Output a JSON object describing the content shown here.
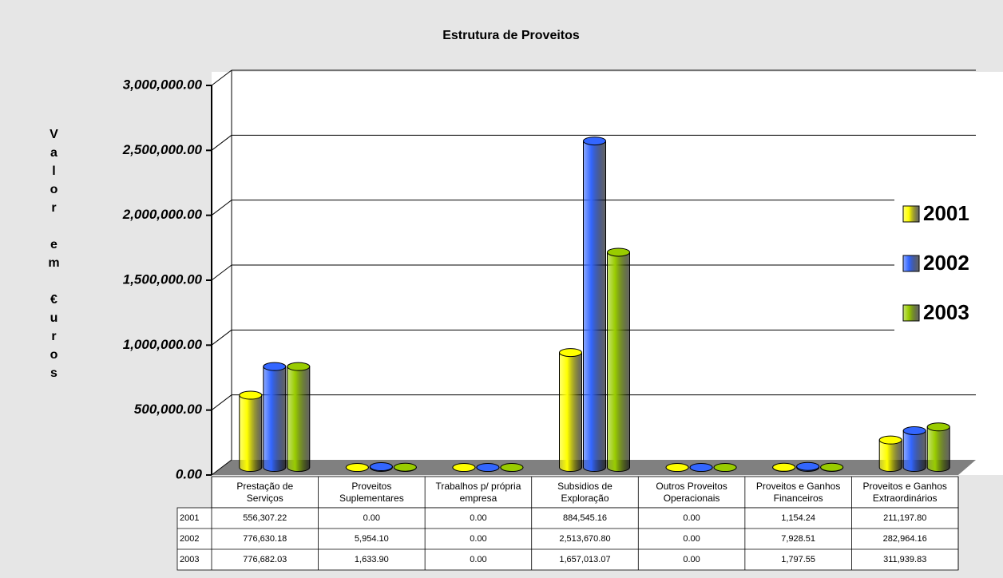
{
  "chart_data": {
    "type": "bar",
    "title": "Estrutura de Proveitos",
    "y_label": "Valor em €uros",
    "categories": [
      "Prestação de Serviços",
      "Proveitos Suplementares",
      "Trabalhos p/ própria empresa",
      "Subsidios de Exploração",
      "Outros Proveitos Operacionais",
      "Proveitos e Ganhos Financeiros",
      "Proveitos e Ganhos Extraordinários"
    ],
    "series": [
      {
        "name": "2001",
        "color": "#ffff00",
        "values": [
          556307.22,
          0,
          0,
          884545.16,
          0,
          1154.24,
          211197.8
        ],
        "value_labels": [
          "556,307.22",
          "0.00",
          "0.00",
          "884,545.16",
          "0.00",
          "1,154.24",
          "211,197.80"
        ]
      },
      {
        "name": "2002",
        "color": "#3366ff",
        "values": [
          776630.18,
          5954.1,
          0,
          2513670.8,
          0,
          7928.51,
          282964.16
        ],
        "value_labels": [
          "776,630.18",
          "5,954.10",
          "0.00",
          "2,513,670.80",
          "0.00",
          "7,928.51",
          "282,964.16"
        ]
      },
      {
        "name": "2003",
        "color": "#99cc00",
        "values": [
          776682.03,
          1633.9,
          0,
          1657013.07,
          0,
          1797.55,
          311939.83
        ],
        "value_labels": [
          "776,682.03",
          "1,633.90",
          "0.00",
          "1,657,013.07",
          "0.00",
          "1,797.55",
          "311,939.83"
        ]
      }
    ],
    "ylim": [
      0,
      3000000
    ],
    "yticks": [
      {
        "value": 0,
        "label": "0.00"
      },
      {
        "value": 500000,
        "label": "500,000.00"
      },
      {
        "value": 1000000,
        "label": "1,000,000.00"
      },
      {
        "value": 1500000,
        "label": "1,500,000.00"
      },
      {
        "value": 2000000,
        "label": "2,000,000.00"
      },
      {
        "value": 2500000,
        "label": "2,500,000.00"
      },
      {
        "value": 3000000,
        "label": "3,000,000.00"
      }
    ],
    "grid": true,
    "legend_position": "right",
    "data_table": true
  }
}
